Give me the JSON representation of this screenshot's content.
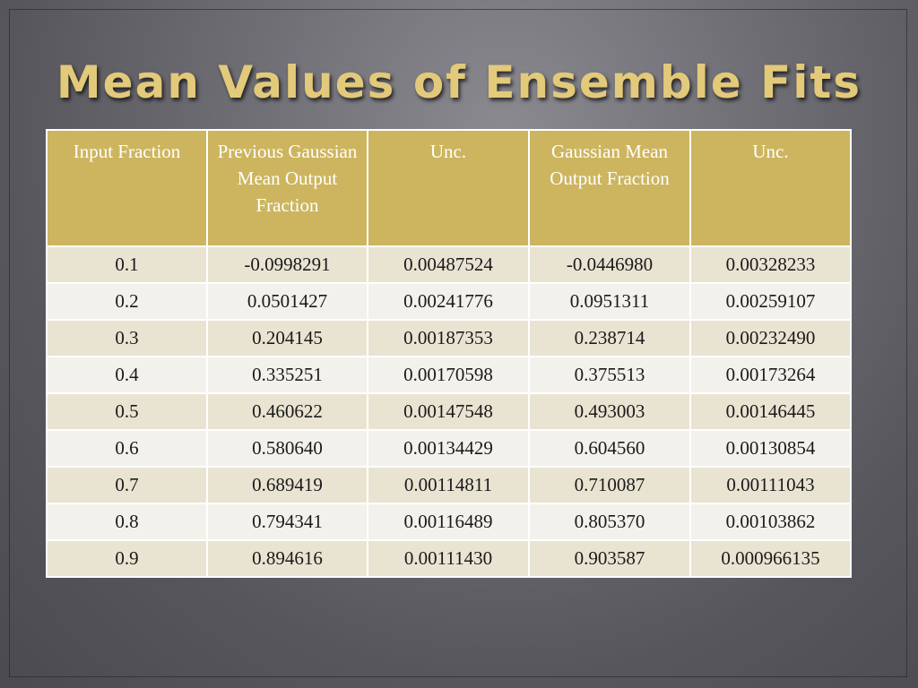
{
  "slide": {
    "title": "Mean Values of Ensemble Fits"
  },
  "table": {
    "headers": [
      "Input Fraction",
      "Previous Gaussian Mean Output Fraction",
      "Unc.",
      "Gaussian Mean Output Fraction",
      "Unc."
    ],
    "rows": [
      [
        "0.1",
        "-0.0998291",
        "0.00487524",
        "-0.0446980",
        "0.00328233"
      ],
      [
        "0.2",
        "0.0501427",
        "0.00241776",
        "0.0951311",
        "0.00259107"
      ],
      [
        "0.3",
        "0.204145",
        "0.00187353",
        "0.238714",
        "0.00232490"
      ],
      [
        "0.4",
        "0.335251",
        "0.00170598",
        "0.375513",
        "0.00173264"
      ],
      [
        "0.5",
        "0.460622",
        "0.00147548",
        "0.493003",
        "0.00146445"
      ],
      [
        "0.6",
        "0.580640",
        "0.00134429",
        "0.604560",
        "0.00130854"
      ],
      [
        "0.7",
        "0.689419",
        "0.00114811",
        "0.710087",
        "0.00111043"
      ],
      [
        "0.8",
        "0.794341",
        "0.00116489",
        "0.805370",
        "0.00103862"
      ],
      [
        "0.9",
        "0.894616",
        "0.00111430",
        "0.903587",
        "0.000966135"
      ]
    ]
  },
  "colors": {
    "title": "#e3c97a",
    "header_bg": "#cdb55f",
    "row_odd": "#e9e3d2",
    "row_even": "#f3f1ec"
  }
}
